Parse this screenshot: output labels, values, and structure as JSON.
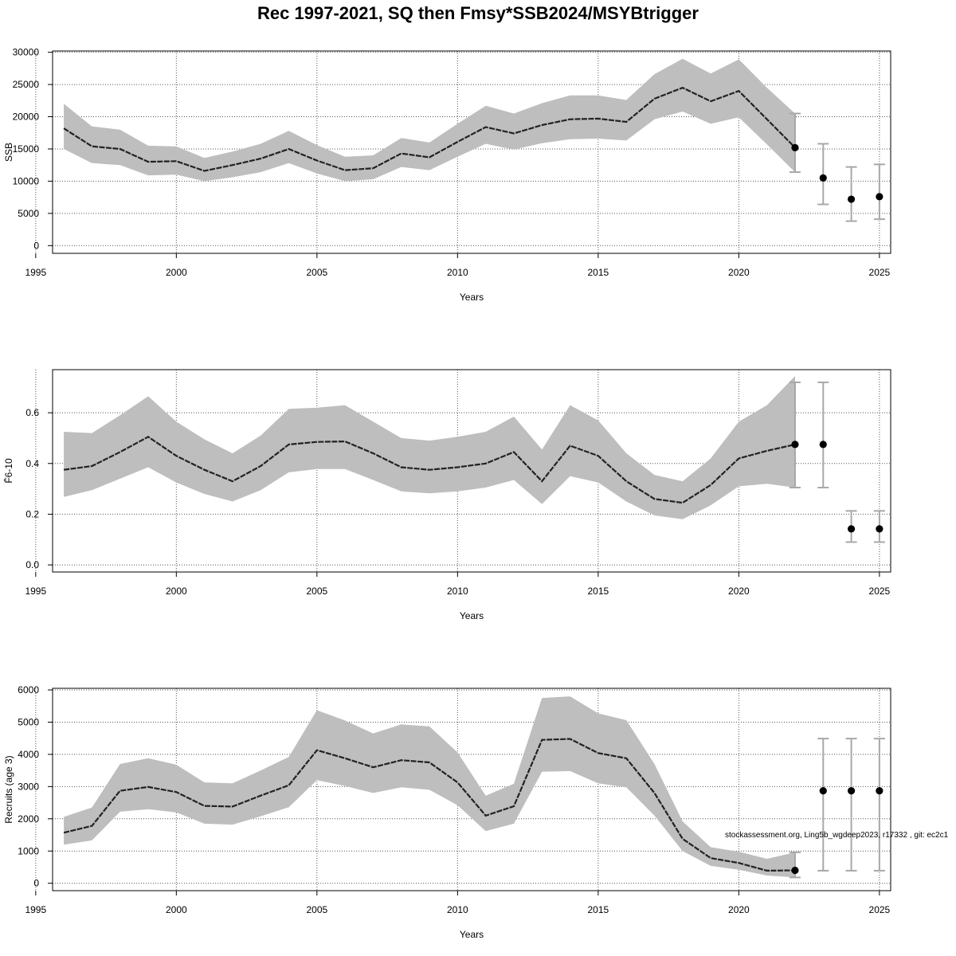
{
  "title": "Rec 1997-2021, SQ then Fmsy*SSB2024/MSYBtrigger",
  "footnote": "stockassessment.org, Ling5b_wgdeep2023, r17332 , git: ec2c1",
  "colors": {
    "band": "#bebebe",
    "line": "#222222",
    "errorbar": "#a8a8a8",
    "point": "#000000",
    "grid": "#555555"
  },
  "chart_data": [
    {
      "type": "line",
      "ylabel": "SSB",
      "xlabel": "Years",
      "xlim": [
        1995.6,
        2025.4
      ],
      "ylim": [
        -1200,
        30200
      ],
      "xticks": [
        1995,
        2000,
        2005,
        2010,
        2015,
        2020,
        2025
      ],
      "yticks": [
        0,
        5000,
        10000,
        15000,
        20000,
        25000,
        30000
      ],
      "grid": true,
      "series": [
        {
          "x": [
            1996,
            1997,
            1998,
            1999,
            2000,
            2001,
            2002,
            2003,
            2004,
            2005,
            2006,
            2007,
            2008,
            2009,
            2010,
            2011,
            2012,
            2013,
            2014,
            2015,
            2016,
            2017,
            2018,
            2019,
            2020,
            2021,
            2022
          ],
          "y": [
            18200,
            15400,
            15000,
            13000,
            13100,
            11600,
            12500,
            13500,
            15000,
            13200,
            11700,
            12000,
            14300,
            13700,
            16100,
            18400,
            17400,
            18700,
            19600,
            19700,
            19200,
            22800,
            24500,
            22400,
            24000,
            19600,
            15200
          ],
          "low": [
            15000,
            12800,
            12500,
            10900,
            11000,
            10000,
            10600,
            11400,
            12800,
            11200,
            10000,
            10300,
            12200,
            11700,
            13800,
            15800,
            14900,
            15900,
            16500,
            16600,
            16300,
            19600,
            20800,
            18900,
            19900,
            15700,
            11400
          ],
          "high": [
            22000,
            18500,
            18000,
            15500,
            15400,
            13600,
            14600,
            15800,
            17800,
            15600,
            13800,
            14000,
            16700,
            16000,
            18900,
            21700,
            20500,
            22100,
            23300,
            23300,
            22600,
            26600,
            29000,
            26700,
            28900,
            24500,
            20500
          ]
        }
      ],
      "forecast": {
        "x": [
          2022,
          2023,
          2024,
          2025
        ],
        "y": [
          15200,
          10500,
          7200,
          7600
        ],
        "low": [
          11400,
          6400,
          3800,
          4100
        ],
        "high": [
          20500,
          15800,
          12200,
          12600
        ]
      }
    },
    {
      "type": "line",
      "ylabel": "F̄6-10",
      "xlabel": "Years",
      "xlim": [
        1995.6,
        2025.4
      ],
      "ylim": [
        -0.028,
        0.77
      ],
      "xticks": [
        1995,
        2000,
        2005,
        2010,
        2015,
        2020,
        2025
      ],
      "yticks": [
        0.0,
        0.2,
        0.4,
        0.6
      ],
      "ytick_labels": [
        "0.0",
        "0.2",
        "0.4",
        "0.6"
      ],
      "grid": true,
      "series": [
        {
          "x": [
            1996,
            1997,
            1998,
            1999,
            2000,
            2001,
            2002,
            2003,
            2004,
            2005,
            2006,
            2007,
            2008,
            2009,
            2010,
            2011,
            2012,
            2013,
            2014,
            2015,
            2016,
            2017,
            2018,
            2019,
            2020,
            2021,
            2022
          ],
          "y": [
            0.375,
            0.39,
            0.445,
            0.505,
            0.43,
            0.375,
            0.33,
            0.39,
            0.475,
            0.485,
            0.487,
            0.44,
            0.385,
            0.375,
            0.385,
            0.4,
            0.445,
            0.33,
            0.47,
            0.43,
            0.33,
            0.26,
            0.245,
            0.315,
            0.42,
            0.45,
            0.475
          ],
          "low": [
            0.268,
            0.295,
            0.34,
            0.385,
            0.325,
            0.28,
            0.25,
            0.295,
            0.365,
            0.378,
            0.378,
            0.335,
            0.29,
            0.282,
            0.29,
            0.305,
            0.335,
            0.24,
            0.35,
            0.325,
            0.25,
            0.195,
            0.18,
            0.235,
            0.31,
            0.32,
            0.305
          ],
          "high": [
            0.525,
            0.52,
            0.59,
            0.665,
            0.565,
            0.495,
            0.44,
            0.51,
            0.615,
            0.62,
            0.63,
            0.565,
            0.5,
            0.49,
            0.505,
            0.525,
            0.585,
            0.455,
            0.63,
            0.57,
            0.44,
            0.355,
            0.33,
            0.42,
            0.565,
            0.63,
            0.745
          ]
        }
      ],
      "forecast": {
        "x": [
          2022,
          2023,
          2024,
          2025
        ],
        "y": [
          0.475,
          0.475,
          0.142,
          0.142
        ],
        "low": [
          0.305,
          0.305,
          0.09,
          0.09
        ],
        "high": [
          0.72,
          0.72,
          0.213,
          0.213
        ]
      }
    },
    {
      "type": "line",
      "ylabel": "Recruits (age 3)",
      "xlabel": "Years",
      "xlim": [
        1995.6,
        2025.4
      ],
      "ylim": [
        -230,
        6050
      ],
      "xticks": [
        1995,
        2000,
        2005,
        2010,
        2015,
        2020,
        2025
      ],
      "yticks": [
        0,
        1000,
        2000,
        3000,
        4000,
        5000,
        6000
      ],
      "grid": true,
      "series": [
        {
          "x": [
            1996,
            1997,
            1998,
            1999,
            2000,
            2001,
            2002,
            2003,
            2004,
            2005,
            2006,
            2007,
            2008,
            2009,
            2010,
            2011,
            2012,
            2013,
            2014,
            2015,
            2016,
            2017,
            2018,
            2019,
            2020,
            2021,
            2022
          ],
          "y": [
            1570,
            1780,
            2870,
            2990,
            2830,
            2400,
            2380,
            2720,
            3040,
            4130,
            3880,
            3600,
            3820,
            3750,
            3130,
            2100,
            2390,
            4450,
            4480,
            4040,
            3880,
            2800,
            1380,
            780,
            630,
            390,
            400
          ],
          "low": [
            1200,
            1330,
            2220,
            2300,
            2200,
            1850,
            1820,
            2080,
            2360,
            3200,
            3020,
            2800,
            2980,
            2900,
            2420,
            1620,
            1850,
            3460,
            3480,
            3100,
            2980,
            2100,
            1000,
            540,
            420,
            240,
            180
          ],
          "high": [
            2060,
            2350,
            3700,
            3880,
            3680,
            3130,
            3100,
            3500,
            3920,
            5370,
            5050,
            4650,
            4930,
            4870,
            4060,
            2720,
            3090,
            5750,
            5800,
            5270,
            5060,
            3700,
            1920,
            1120,
            980,
            760,
            960
          ]
        }
      ],
      "forecast": {
        "x": [
          2022,
          2023,
          2024,
          2025
        ],
        "y": [
          400,
          2870,
          2870,
          2870
        ],
        "low": [
          180,
          390,
          390,
          390
        ],
        "high": [
          960,
          4490,
          4490,
          4490
        ]
      }
    }
  ]
}
